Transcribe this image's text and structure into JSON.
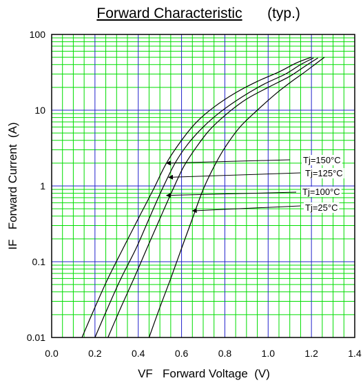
{
  "chart_data": {
    "type": "line",
    "title": "Forward Characteristic",
    "subtitle": "(typ.)",
    "xlabel": "VF   Forward Voltage  (V)",
    "ylabel": "IF   Forward Current  (A)",
    "xlim": [
      0.0,
      1.4
    ],
    "ylim": [
      0.01,
      100
    ],
    "yscale": "log",
    "grid": true,
    "x_ticks": [
      {
        "value": 0.0,
        "label": "0.0"
      },
      {
        "value": 0.2,
        "label": "0.2"
      },
      {
        "value": 0.4,
        "label": "0.4"
      },
      {
        "value": 0.6,
        "label": "0.6"
      },
      {
        "value": 0.8,
        "label": "0.8"
      },
      {
        "value": 1.0,
        "label": "1.0"
      },
      {
        "value": 1.2,
        "label": "1.2"
      },
      {
        "value": 1.4,
        "label": "1.4"
      }
    ],
    "y_ticks": [
      {
        "value": 0.01,
        "label": "0.01"
      },
      {
        "value": 0.1,
        "label": "0.1"
      },
      {
        "value": 1,
        "label": "1"
      },
      {
        "value": 10,
        "label": "10"
      },
      {
        "value": 100,
        "label": "100"
      }
    ],
    "colors": {
      "major_grid": "#2222cc",
      "minor_grid": "#00dd00",
      "curves": "#000000"
    },
    "series": [
      {
        "name": "Tj=150°C",
        "x": [
          0.14,
          0.2,
          0.26,
          0.33,
          0.4,
          0.47,
          0.53,
          0.6,
          0.67,
          0.75,
          0.85,
          0.95,
          1.05,
          1.13,
          1.2
        ],
        "y": [
          0.01,
          0.025,
          0.06,
          0.15,
          0.37,
          0.9,
          2.0,
          4.0,
          7.0,
          11.0,
          17.0,
          24.0,
          32.0,
          42.0,
          50.0
        ]
      },
      {
        "name": "Tj=125°C",
        "x": [
          0.2,
          0.26,
          0.32,
          0.39,
          0.45,
          0.51,
          0.57,
          0.63,
          0.7,
          0.78,
          0.88,
          0.98,
          1.08,
          1.15,
          1.21
        ],
        "y": [
          0.01,
          0.025,
          0.06,
          0.15,
          0.37,
          0.9,
          2.0,
          3.6,
          6.0,
          9.5,
          15.0,
          22.0,
          30.0,
          40.0,
          49.0
        ]
      },
      {
        "name": "Tj=100°C",
        "x": [
          0.26,
          0.32,
          0.38,
          0.44,
          0.5,
          0.56,
          0.61,
          0.67,
          0.73,
          0.81,
          0.9,
          1.0,
          1.1,
          1.17,
          1.23
        ],
        "y": [
          0.01,
          0.025,
          0.06,
          0.15,
          0.37,
          0.9,
          1.8,
          3.3,
          5.5,
          9.0,
          14.0,
          20.0,
          28.0,
          38.0,
          49.0
        ]
      },
      {
        "name": "Tj=25°C",
        "x": [
          0.45,
          0.5,
          0.55,
          0.6,
          0.65,
          0.7,
          0.75,
          0.8,
          0.87,
          0.95,
          1.03,
          1.1,
          1.17,
          1.22,
          1.26
        ],
        "y": [
          0.01,
          0.025,
          0.06,
          0.15,
          0.37,
          0.9,
          1.8,
          3.2,
          6.0,
          10.0,
          16.0,
          23.0,
          32.0,
          41.0,
          50.0
        ]
      }
    ],
    "annotations": [
      {
        "text": "Tj=150°C",
        "series": "Tj=150°C",
        "arrow_to": {
          "x": 0.53,
          "y": 2.0
        }
      },
      {
        "text": "Tj=125°C",
        "series": "Tj=125°C",
        "arrow_to": {
          "x": 0.54,
          "y": 1.3
        }
      },
      {
        "text": "Tj=100°C",
        "series": "Tj=100°C",
        "arrow_to": {
          "x": 0.53,
          "y": 0.75
        }
      },
      {
        "text": "Tj=25°C",
        "series": "Tj=25°C",
        "arrow_to": {
          "x": 0.65,
          "y": 0.47
        }
      }
    ]
  }
}
